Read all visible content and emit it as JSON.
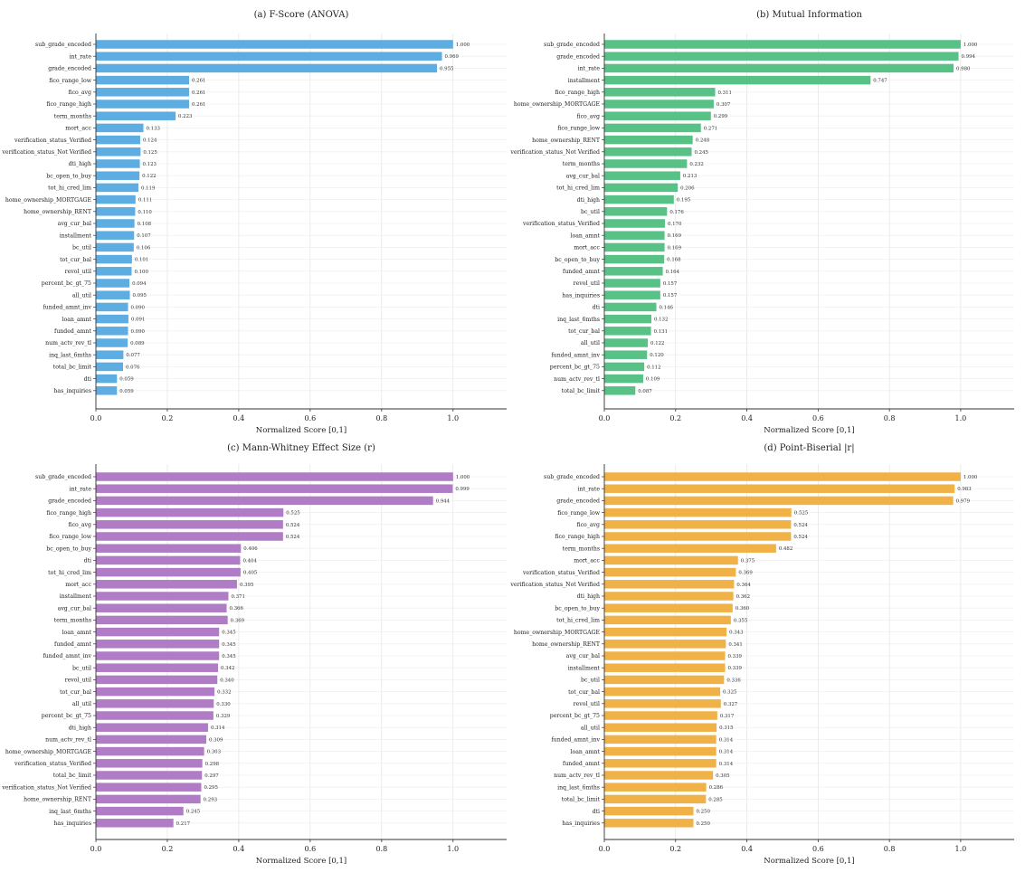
{
  "chart_data": [
    {
      "type": "bar",
      "orientation": "horizontal",
      "title": "(a) F-Score (ANOVA)",
      "xlabel": "Normalized Score [0,1]",
      "xlim": [
        0,
        1.15
      ],
      "xticks": [
        "0.0",
        "0.2",
        "0.4",
        "0.6",
        "0.8",
        "1.0"
      ],
      "grid": true,
      "color": "#5dade2",
      "categories": [
        "sub_grade_encoded",
        "int_rate",
        "grade_encoded",
        "fico_range_low",
        "fico_avg",
        "fico_range_high",
        "term_months",
        "mort_acc",
        "verification_status_Verified",
        "verification_status_Not Verified",
        "dti_high",
        "bc_open_to_buy",
        "tot_hi_cred_lim",
        "home_ownership_MORTGAGE",
        "home_ownership_RENT",
        "avg_cur_bal",
        "installment",
        "bc_util",
        "tot_cur_bal",
        "revol_util",
        "percent_bc_gt_75",
        "all_util",
        "funded_amnt_inv",
        "loan_amnt",
        "funded_amnt",
        "num_actv_rev_tl",
        "inq_last_6mths",
        "total_bc_limit",
        "dti",
        "has_inquiries"
      ],
      "values": [
        1.0,
        0.969,
        0.955,
        0.261,
        0.261,
        0.261,
        0.223,
        0.133,
        0.124,
        0.125,
        0.123,
        0.122,
        0.119,
        0.111,
        0.11,
        0.108,
        0.107,
        0.106,
        0.101,
        0.1,
        0.094,
        0.095,
        0.09,
        0.091,
        0.09,
        0.089,
        0.077,
        0.076,
        0.059,
        0.059
      ],
      "value_labels": [
        "1.000",
        "0.969",
        "0.955",
        "0.261",
        "0.261",
        "0.261",
        "0.223",
        "0.133",
        "0.124",
        "0.125",
        "0.123",
        "0.122",
        "0.119",
        "0.111",
        "0.110",
        "0.108",
        "0.107",
        "0.106",
        "0.101",
        "0.100",
        "0.094",
        "0.095",
        "0.090",
        "0.091",
        "0.090",
        "0.089",
        "0.077",
        "0.076",
        "0.059",
        "0.059"
      ]
    },
    {
      "type": "bar",
      "orientation": "horizontal",
      "title": "(b) Mutual Information",
      "xlabel": "Normalized Score [0,1]",
      "xlim": [
        0,
        1.15
      ],
      "xticks": [
        "0.0",
        "0.2",
        "0.4",
        "0.6",
        "0.8",
        "1.0"
      ],
      "grid": true,
      "color": "#58c186",
      "categories": [
        "sub_grade_encoded",
        "grade_encoded",
        "int_rate",
        "installment",
        "fico_range_high",
        "home_ownership_MORTGAGE",
        "fico_avg",
        "fico_range_low",
        "home_ownership_RENT",
        "verification_status_Not Verified",
        "term_months",
        "avg_cur_bal",
        "tot_hi_cred_lim",
        "dti_high",
        "bc_util",
        "verification_status_Verified",
        "loan_amnt",
        "mort_acc",
        "bc_open_to_buy",
        "funded_amnt",
        "revol_util",
        "has_inquiries",
        "dti",
        "inq_last_6mths",
        "tot_cur_bal",
        "all_util",
        "funded_amnt_inv",
        "percent_bc_gt_75",
        "num_actv_rev_tl",
        "total_bc_limit"
      ],
      "values": [
        1.0,
        0.994,
        0.98,
        0.747,
        0.311,
        0.307,
        0.299,
        0.271,
        0.248,
        0.245,
        0.232,
        0.213,
        0.206,
        0.195,
        0.176,
        0.17,
        0.169,
        0.169,
        0.168,
        0.164,
        0.157,
        0.157,
        0.146,
        0.132,
        0.131,
        0.122,
        0.12,
        0.112,
        0.109,
        0.087
      ],
      "value_labels": [
        "1.000",
        "0.994",
        "0.980",
        "0.747",
        "0.311",
        "0.307",
        "0.299",
        "0.271",
        "0.248",
        "0.245",
        "0.232",
        "0.213",
        "0.206",
        "0.195",
        "0.176",
        "0.170",
        "0.169",
        "0.169",
        "0.168",
        "0.164",
        "0.157",
        "0.157",
        "0.146",
        "0.132",
        "0.131",
        "0.122",
        "0.120",
        "0.112",
        "0.109",
        "0.087"
      ]
    },
    {
      "type": "bar",
      "orientation": "horizontal",
      "title": "(c) Mann-Whitney Effect Size (r)",
      "xlabel": "Normalized Score [0,1]",
      "xlim": [
        0,
        1.15
      ],
      "xticks": [
        "0.0",
        "0.2",
        "0.4",
        "0.6",
        "0.8",
        "1.0"
      ],
      "grid": true,
      "color": "#b07cc6",
      "categories": [
        "sub_grade_encoded",
        "int_rate",
        "grade_encoded",
        "fico_range_high",
        "fico_avg",
        "fico_range_low",
        "bc_open_to_buy",
        "dti",
        "tot_hi_cred_lim",
        "mort_acc",
        "installment",
        "avg_cur_bal",
        "term_months",
        "loan_amnt",
        "funded_amnt",
        "funded_amnt_inv",
        "bc_util",
        "revol_util",
        "tot_cur_bal",
        "all_util",
        "percent_bc_gt_75",
        "dti_high",
        "num_actv_rev_tl",
        "home_ownership_MORTGAGE",
        "verification_status_Verified",
        "total_bc_limit",
        "verification_status_Not Verified",
        "home_ownership_RENT",
        "inq_last_6mths",
        "has_inquiries"
      ],
      "values": [
        1.0,
        0.999,
        0.944,
        0.525,
        0.524,
        0.524,
        0.406,
        0.404,
        0.405,
        0.395,
        0.371,
        0.366,
        0.369,
        0.345,
        0.345,
        0.345,
        0.342,
        0.34,
        0.332,
        0.33,
        0.329,
        0.314,
        0.309,
        0.303,
        0.298,
        0.297,
        0.295,
        0.293,
        0.245,
        0.217
      ],
      "value_labels": [
        "1.000",
        "0.999",
        "0.944",
        "0.525",
        "0.524",
        "0.524",
        "0.406",
        "0.404",
        "0.405",
        "0.395",
        "0.371",
        "0.366",
        "0.369",
        "0.345",
        "0.345",
        "0.345",
        "0.342",
        "0.340",
        "0.332",
        "0.330",
        "0.329",
        "0.314",
        "0.309",
        "0.303",
        "0.298",
        "0.297",
        "0.295",
        "0.293",
        "0.245",
        "0.217"
      ]
    },
    {
      "type": "bar",
      "orientation": "horizontal",
      "title": "(d) Point-Biserial |r|",
      "xlabel": "Normalized Score [0,1]",
      "xlim": [
        0,
        1.15
      ],
      "xticks": [
        "0.0",
        "0.2",
        "0.4",
        "0.6",
        "0.8",
        "1.0"
      ],
      "grid": true,
      "color": "#f0b247",
      "categories": [
        "sub_grade_encoded",
        "int_rate",
        "grade_encoded",
        "fico_range_low",
        "fico_avg",
        "fico_range_high",
        "term_months",
        "mort_acc",
        "verification_status_Verified",
        "verification_status_Not Verified",
        "dti_high",
        "bc_open_to_buy",
        "tot_hi_cred_lim",
        "home_ownership_MORTGAGE",
        "home_ownership_RENT",
        "avg_cur_bal",
        "installment",
        "bc_util",
        "tot_cur_bal",
        "revol_util",
        "percent_bc_gt_75",
        "all_util",
        "funded_amnt_inv",
        "loan_amnt",
        "funded_amnt",
        "num_actv_rev_tl",
        "inq_last_6mths",
        "total_bc_limit",
        "dti",
        "has_inquiries"
      ],
      "values": [
        1.0,
        0.983,
        0.979,
        0.525,
        0.524,
        0.524,
        0.482,
        0.375,
        0.369,
        0.364,
        0.362,
        0.36,
        0.355,
        0.343,
        0.341,
        0.339,
        0.339,
        0.336,
        0.325,
        0.327,
        0.317,
        0.315,
        0.314,
        0.314,
        0.314,
        0.305,
        0.286,
        0.285,
        0.25,
        0.25
      ],
      "value_labels": [
        "1.000",
        "0.983",
        "0.979",
        "0.525",
        "0.524",
        "0.524",
        "0.482",
        "0.375",
        "0.369",
        "0.364",
        "0.362",
        "0.360",
        "0.355",
        "0.343",
        "0.341",
        "0.339",
        "0.339",
        "0.336",
        "0.325",
        "0.327",
        "0.317",
        "0.315",
        "0.314",
        "0.314",
        "0.314",
        "0.305",
        "0.286",
        "0.285",
        "0.250",
        "0.250"
      ]
    }
  ]
}
